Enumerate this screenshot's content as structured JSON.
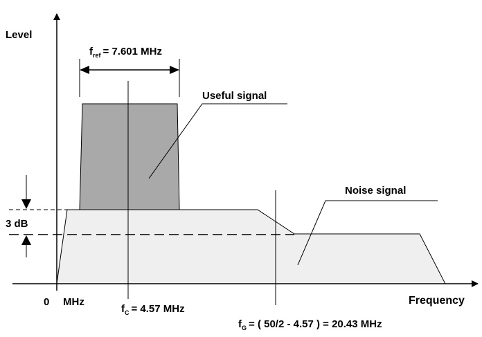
{
  "axes": {
    "y_label": "Level",
    "x_label": "Frequency",
    "origin_label": "0",
    "origin_unit": "MHz"
  },
  "ref_bandwidth": {
    "symbol": "f",
    "subscript": "ref",
    "value": "= 7.601 MHz"
  },
  "center_freq": {
    "symbol": "f",
    "subscript": "C",
    "value": "= 4.57 MHz"
  },
  "g_freq": {
    "symbol": "f",
    "subscript": "G",
    "value": "= ( 50/2 - 4.57 ) = 20.43 MHz"
  },
  "level_marker": {
    "label": "3 dB"
  },
  "annotations": {
    "useful_signal": "Useful signal",
    "noise_signal": "Noise signal"
  },
  "colors": {
    "useful_fill": "#a9a9a9",
    "noise_fill": "#efefef",
    "line": "#000000"
  }
}
